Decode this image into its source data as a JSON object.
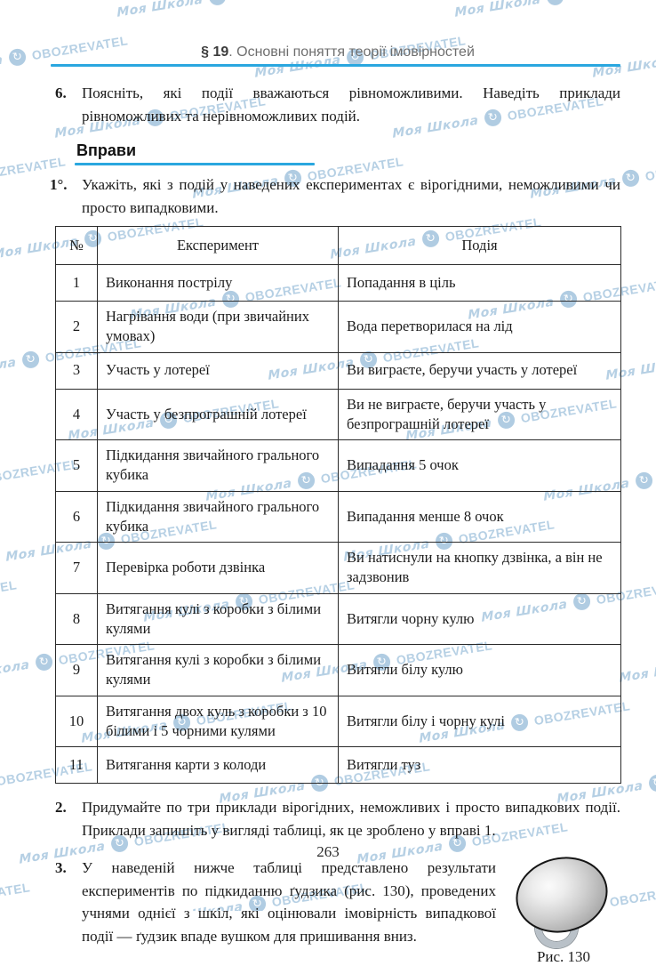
{
  "header": {
    "section": "§ 19",
    "rest": ". Основні поняття теорії імовірностей"
  },
  "watermark": {
    "script_text": "Моя Школа",
    "brand_text": "OBOZREVATEL",
    "icon": "globe-refresh-icon",
    "color": "#aac8e0"
  },
  "item6": {
    "num": "6.",
    "text": "Поясніть, які події вважаються рівноможливими. Наведіть приклади рівноможливих та нерівноможливих подій."
  },
  "exercises_heading": "Вправи",
  "item1": {
    "num": "1°.",
    "text": "Укажіть, які з подій у наведених експериментах є вірогідними, неможливими чи просто випадковими."
  },
  "table": {
    "headers": [
      "№",
      "Експеримент",
      "Подія"
    ],
    "rows": [
      [
        "1",
        "Виконання пострілу",
        "Попадання в ціль"
      ],
      [
        "2",
        "Нагрівання води (при звичайних умовах)",
        "Вода перетворилася на лід"
      ],
      [
        "3",
        "Участь у лотереї",
        "Ви виграєте, беручи участь у лотереї"
      ],
      [
        "4",
        "Участь у безпрограшній лотереї",
        "Ви не виграєте, беручи участь у безпрограшній лотереї"
      ],
      [
        "5",
        "Підкидання звичайного грального кубика",
        "Випадання 5 очок"
      ],
      [
        "6",
        "Підкидання звичайного грального кубика",
        "Випадання менше 8 очок"
      ],
      [
        "7",
        "Перевірка роботи дзвінка",
        "Ви натиснули на кнопку дзвінка, а він не задзвонив"
      ],
      [
        "8",
        "Витягання кулі з коробки з білими кулями",
        "Витягли чорну кулю"
      ],
      [
        "9",
        "Витягання кулі з коробки з білими кулями",
        "Витягли білу кулю"
      ],
      [
        "10",
        "Витягання двох куль з коробки з 10 білими і 5 чорними кулями",
        "Витягли білу і чорну кулі"
      ],
      [
        "11",
        "Витягання карти з колоди",
        "Витягли туз"
      ]
    ]
  },
  "item2": {
    "num": "2.",
    "text": "Придумайте по три приклади вірогідних, неможливих і просто випадкових події. Приклади запишіть у вигляді таблиці, як це зроблено у вправі 1."
  },
  "item3": {
    "num": "3.",
    "text": "У наведеній нижче таблиці представлено результати експериментів по підкиданню ґудзика (рис. 130), проведених учнями однієї з шкіл, які оцінювали імовірність випадкової події — ґудзик впаде вушком для пришивання вниз."
  },
  "figure": {
    "caption": "Рис. 130"
  },
  "page_number": "263",
  "accent_colors": {
    "rule_blue": "#2aa7df",
    "watermark_blue": "#aac8e0"
  }
}
